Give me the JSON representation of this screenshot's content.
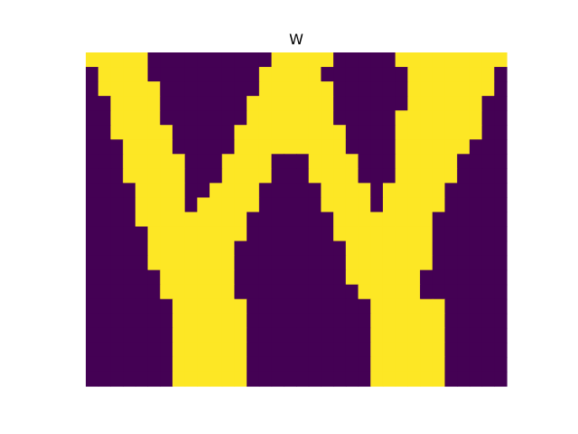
{
  "chart_data": {
    "type": "heatmap",
    "title": "W",
    "xlabel": "",
    "ylabel": "",
    "axes_visible": false,
    "colors": {
      "low": "#440154",
      "high": "#fde725"
    },
    "rows": [
      "1111100000000001111100000111111111",
      "0111100000000011111000000011111110",
      "0111110000000011111100000011111110",
      "0011110000000111111100000011111100",
      "0011110000000111111100000111111100",
      "0011111000001111111110000111111100",
      "0001111000001111111110000111111000",
      "0001111100011110001111000111110000",
      "0001111100011110001111000111110000",
      "0000111100111100000111101111100000",
      "0000111101111100000111101111100000",
      "0000111111111000000011111111000000",
      "0000011111111000000011111111000000",
      "0000011111110000000001111111000000",
      "0000011111110000000001111111000000",
      "0000001111110000000001111110000000",
      "0000001111110000000000111110000000",
      "0000000111111000000000011111100000",
      "0000000111111000000000011111100000",
      "0000000111111000000000011111100000",
      "0000000111111000000000011111100000",
      "0000000111111000000000011111100000",
      "0000000111111000000000011111100000"
    ]
  }
}
